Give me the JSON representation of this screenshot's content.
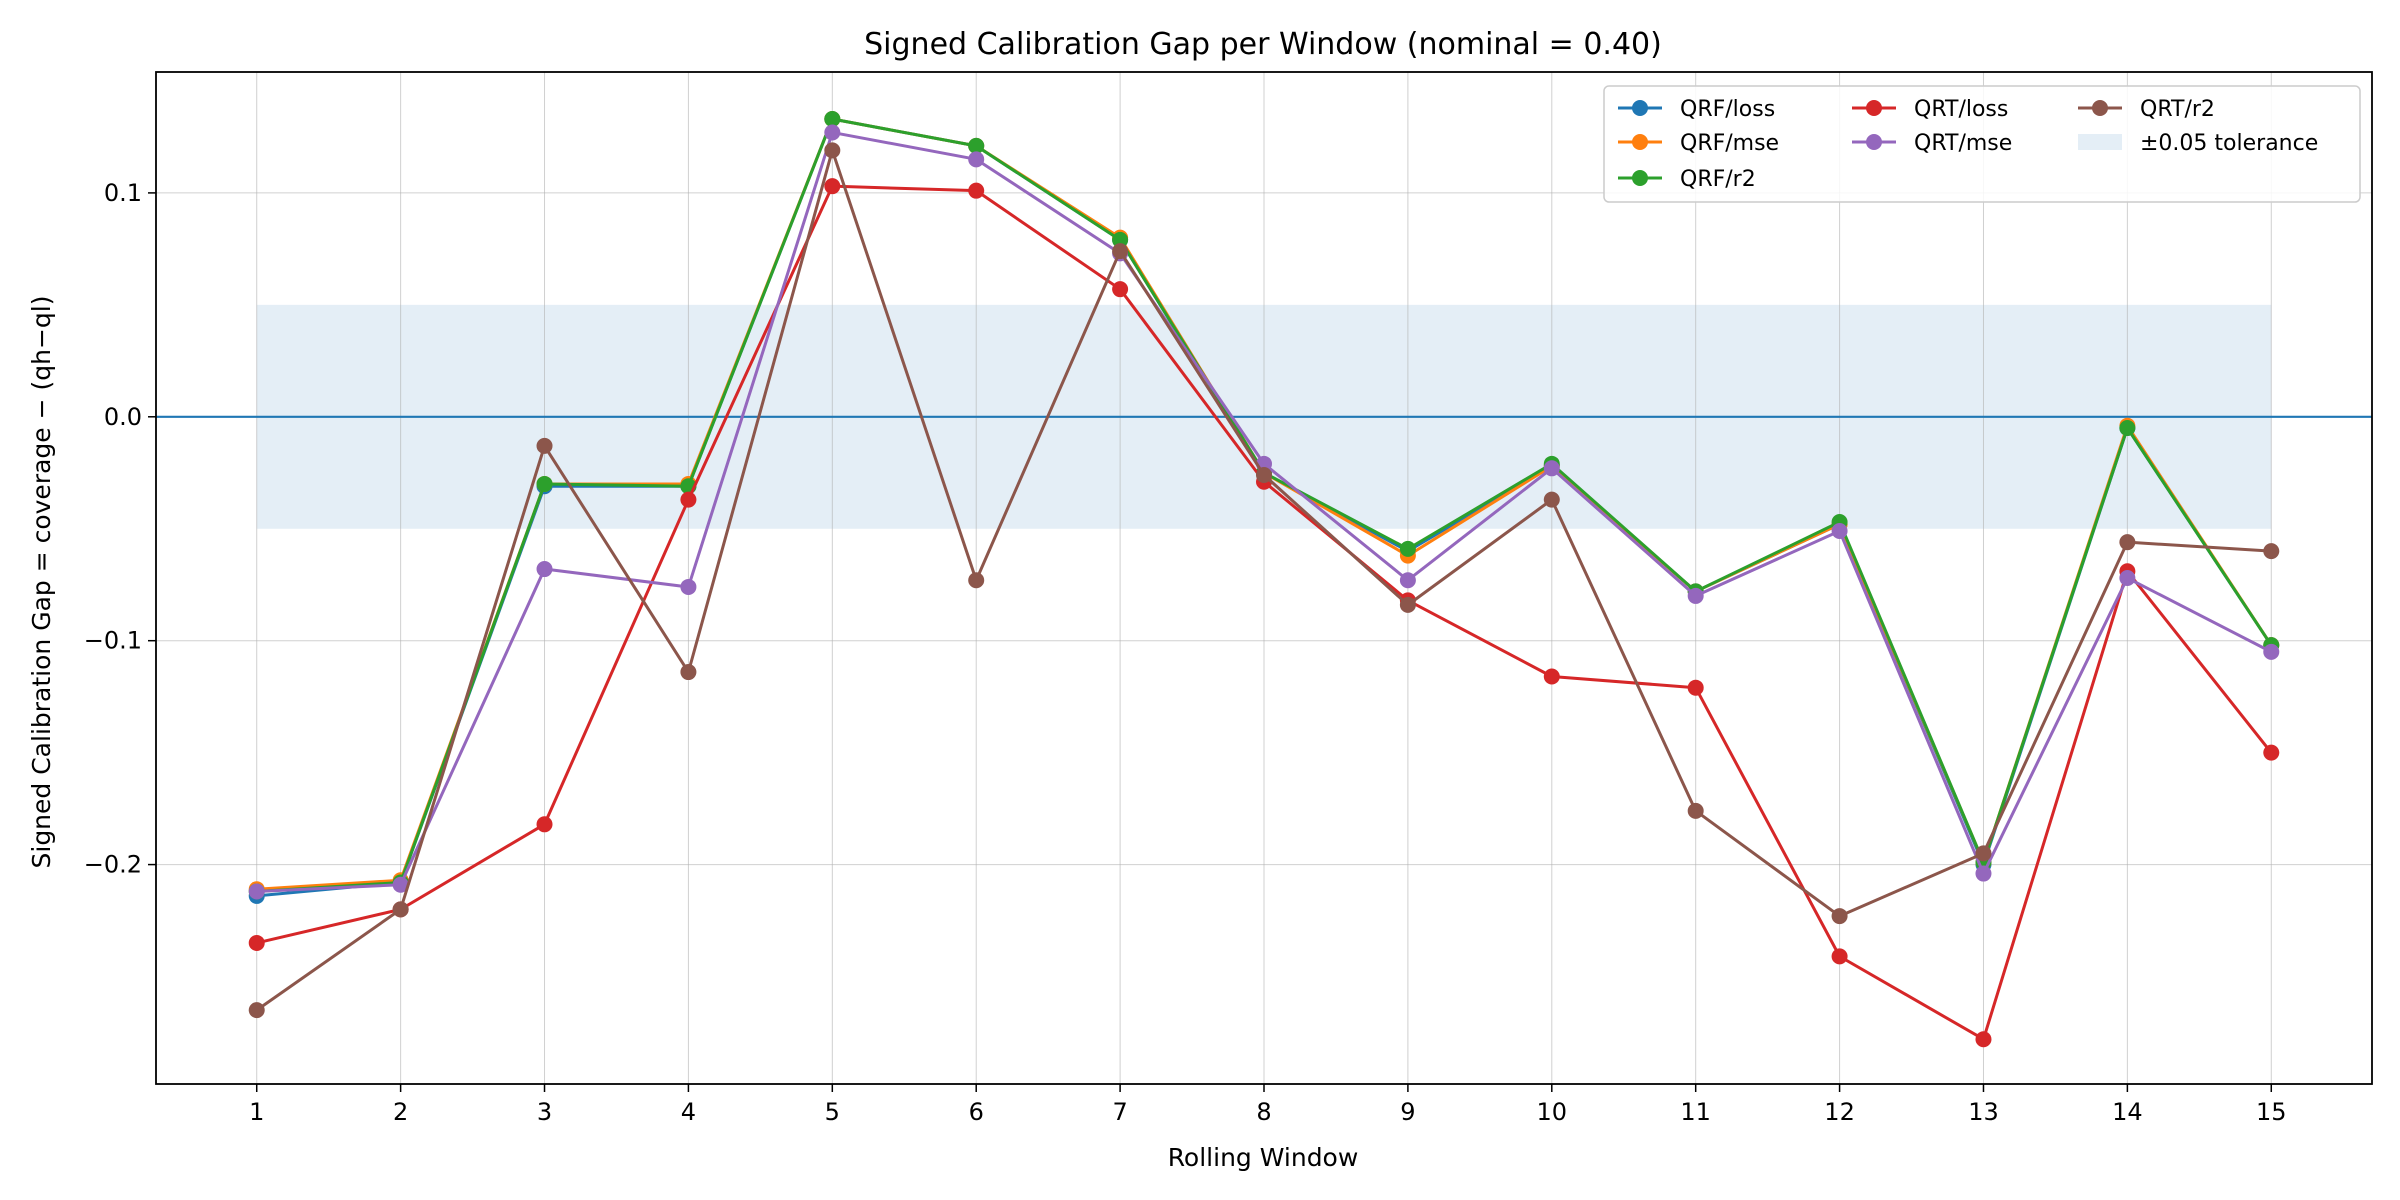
{
  "chart_data": {
    "type": "line",
    "title": "Signed Calibration Gap per Window (nominal = 0.40)",
    "xlabel": "Rolling Window",
    "ylabel": "Signed Calibration Gap = coverage − (qh−ql)",
    "x": [
      1,
      2,
      3,
      4,
      5,
      6,
      7,
      8,
      9,
      10,
      11,
      12,
      13,
      14,
      15
    ],
    "xlim": [
      0.3,
      15.7
    ],
    "ylim": [
      -0.298,
      0.154
    ],
    "yticks": [
      -0.2,
      -0.1,
      0.0,
      0.1
    ],
    "ytick_labels": [
      "−0.2",
      "−0.1",
      "0.0",
      "0.1"
    ],
    "grid": true,
    "legend_position": "top-right",
    "reference_line": {
      "y": 0.0,
      "color": "#1f77b4"
    },
    "tolerance_band": {
      "label": "±0.05 tolerance",
      "low": -0.05,
      "high": 0.05,
      "color": "#1f77b4"
    },
    "series": [
      {
        "name": "QRF/loss",
        "color": "#1f77b4",
        "values": [
          -0.214,
          -0.208,
          -0.031,
          -0.031,
          0.133,
          0.121,
          0.079,
          -0.025,
          -0.06,
          -0.022,
          -0.078,
          -0.048,
          -0.2,
          -0.005,
          -0.102
        ]
      },
      {
        "name": "QRF/mse",
        "color": "#ff7f0e",
        "values": [
          -0.211,
          -0.207,
          -0.03,
          -0.03,
          0.133,
          0.121,
          0.08,
          -0.025,
          -0.062,
          -0.022,
          -0.078,
          -0.048,
          -0.199,
          -0.004,
          -0.102
        ]
      },
      {
        "name": "QRF/r2",
        "color": "#2ca02c",
        "values": [
          -0.212,
          -0.208,
          -0.03,
          -0.031,
          0.133,
          0.121,
          0.079,
          -0.025,
          -0.059,
          -0.021,
          -0.078,
          -0.047,
          -0.199,
          -0.005,
          -0.102
        ]
      },
      {
        "name": "QRT/loss",
        "color": "#d62728",
        "values": [
          -0.235,
          -0.22,
          -0.182,
          -0.037,
          0.103,
          0.101,
          0.057,
          -0.029,
          -0.082,
          -0.116,
          -0.121,
          -0.241,
          -0.278,
          -0.069,
          -0.15
        ]
      },
      {
        "name": "QRT/mse",
        "color": "#9467bd",
        "values": [
          -0.212,
          -0.209,
          -0.068,
          -0.076,
          0.127,
          0.115,
          0.073,
          -0.021,
          -0.073,
          -0.023,
          -0.08,
          -0.051,
          -0.204,
          -0.072,
          -0.105
        ]
      },
      {
        "name": "QRT/r2",
        "color": "#8c564b",
        "values": [
          -0.265,
          -0.22,
          -0.013,
          -0.114,
          0.119,
          -0.073,
          0.074,
          -0.026,
          -0.084,
          -0.037,
          -0.176,
          -0.223,
          -0.195,
          -0.056,
          -0.06
        ]
      }
    ]
  }
}
